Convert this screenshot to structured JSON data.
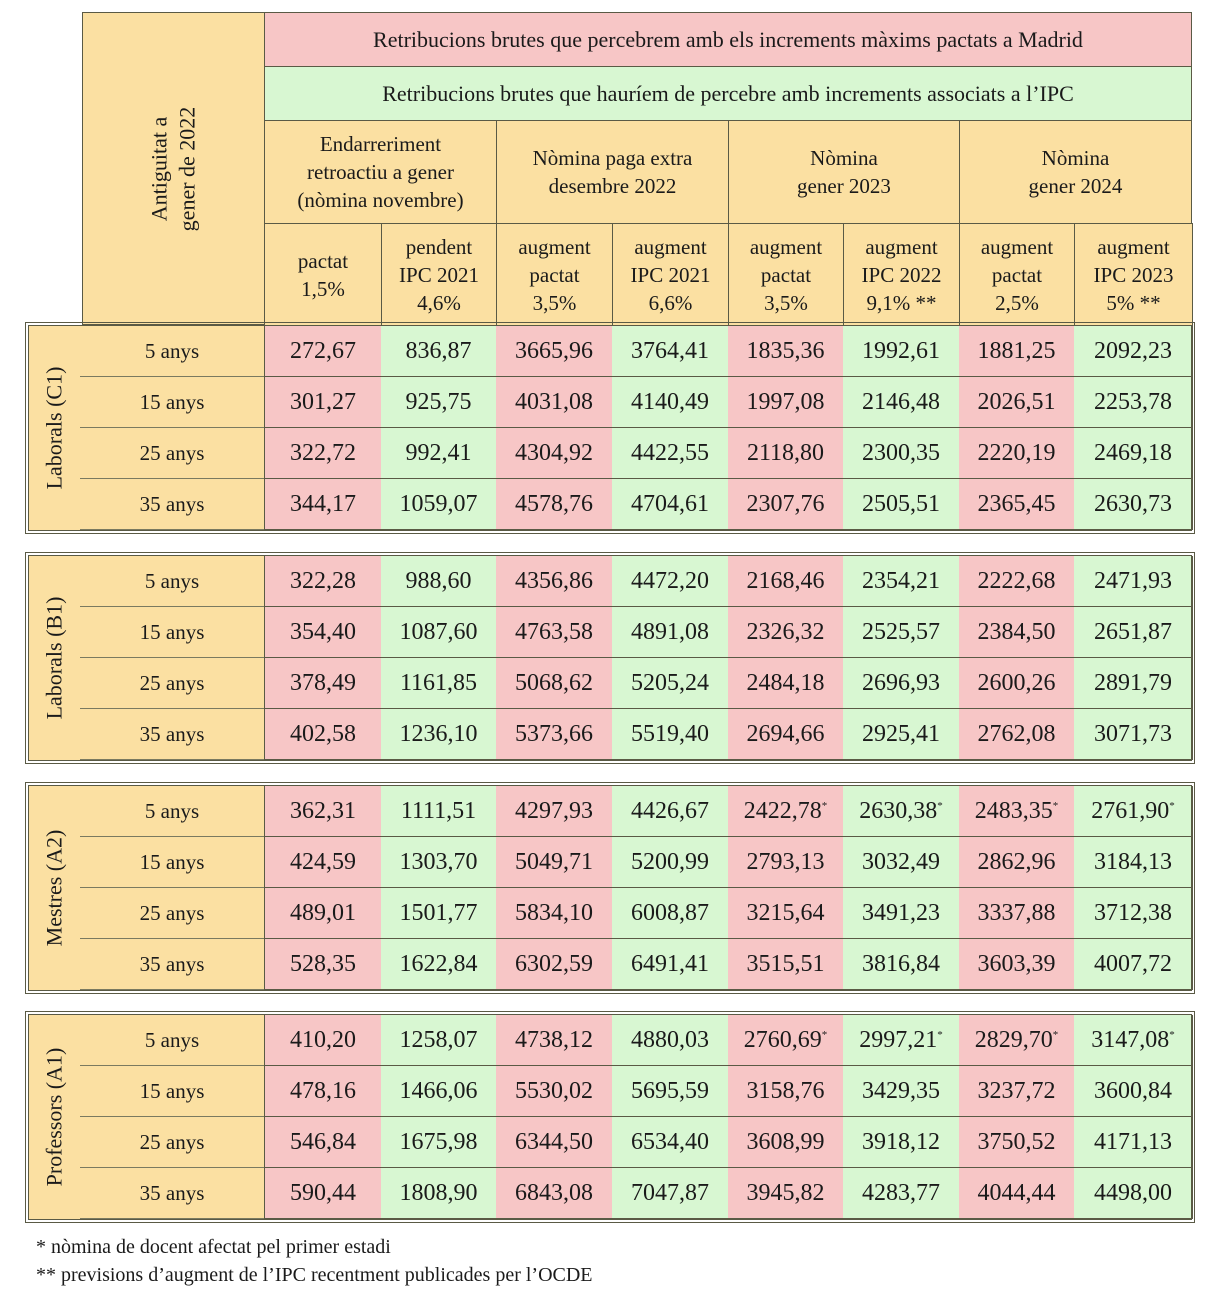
{
  "header": {
    "antiguitat_label": "Antiguitat a gener de 2022",
    "antiguitat_lines": [
      "Antiguitat a",
      "gener de 2022"
    ],
    "banner_madrid": "Retribucions brutes que percebrem amb els increments màxims pactats a Madrid",
    "banner_ipc": "Retribucions brutes que hauríem de percebre amb increments associats a l’IPC",
    "periods": [
      [
        "Endarreriment",
        "retroactiu a gener",
        "(nòmina novembre)"
      ],
      [
        "Nòmina paga extra",
        "desembre 2022"
      ],
      [
        "Nòmina",
        "gener 2023"
      ],
      [
        "Nòmina",
        "gener 2024"
      ]
    ],
    "columns": [
      [
        "pactat",
        "1,5%"
      ],
      [
        "pendent",
        "IPC 2021",
        "4,6%"
      ],
      [
        "augment",
        "pactat",
        "3,5%"
      ],
      [
        "augment",
        "IPC 2021",
        "6,6%"
      ],
      [
        "augment",
        "pactat",
        "3,5%"
      ],
      [
        "augment",
        "IPC 2022",
        "9,1% **"
      ],
      [
        "augment",
        "pactat",
        "2,5%"
      ],
      [
        "augment",
        "IPC 2023",
        "5% **"
      ]
    ]
  },
  "groups": [
    {
      "label": "Laborals (C1)",
      "rows": [
        {
          "antiguitat": "5 anys",
          "values": [
            "272,67",
            "836,87",
            "3665,96",
            "3764,41",
            "1835,36",
            "1992,61",
            "1881,25",
            "2092,23"
          ]
        },
        {
          "antiguitat": "15 anys",
          "values": [
            "301,27",
            "925,75",
            "4031,08",
            "4140,49",
            "1997,08",
            "2146,48",
            "2026,51",
            "2253,78"
          ]
        },
        {
          "antiguitat": "25 anys",
          "values": [
            "322,72",
            "992,41",
            "4304,92",
            "4422,55",
            "2118,80",
            "2300,35",
            "2220,19",
            "2469,18"
          ]
        },
        {
          "antiguitat": "35 anys",
          "values": [
            "344,17",
            "1059,07",
            "4578,76",
            "4704,61",
            "2307,76",
            "2505,51",
            "2365,45",
            "2630,73"
          ]
        }
      ]
    },
    {
      "label": "Laborals (B1)",
      "rows": [
        {
          "antiguitat": "5 anys",
          "values": [
            "322,28",
            "988,60",
            "4356,86",
            "4472,20",
            "2168,46",
            "2354,21",
            "2222,68",
            "2471,93"
          ]
        },
        {
          "antiguitat": "15 anys",
          "values": [
            "354,40",
            "1087,60",
            "4763,58",
            "4891,08",
            "2326,32",
            "2525,57",
            "2384,50",
            "2651,87"
          ]
        },
        {
          "antiguitat": "25 anys",
          "values": [
            "378,49",
            "1161,85",
            "5068,62",
            "5205,24",
            "2484,18",
            "2696,93",
            "2600,26",
            "2891,79"
          ]
        },
        {
          "antiguitat": "35 anys",
          "values": [
            "402,58",
            "1236,10",
            "5373,66",
            "5519,40",
            "2694,66",
            "2925,41",
            "2762,08",
            "3071,73"
          ]
        }
      ]
    },
    {
      "label": "Mestres (A2)",
      "rows": [
        {
          "antiguitat": "5 anys",
          "values": [
            "362,31",
            "1111,51",
            "4297,93",
            "4426,67",
            "2422,78*",
            "2630,38*",
            "2483,35*",
            "2761,90*"
          ]
        },
        {
          "antiguitat": "15 anys",
          "values": [
            "424,59",
            "1303,70",
            "5049,71",
            "5200,99",
            "2793,13",
            "3032,49",
            "2862,96",
            "3184,13"
          ]
        },
        {
          "antiguitat": "25 anys",
          "values": [
            "489,01",
            "1501,77",
            "5834,10",
            "6008,87",
            "3215,64",
            "3491,23",
            "3337,88",
            "3712,38"
          ]
        },
        {
          "antiguitat": "35 anys",
          "values": [
            "528,35",
            "1622,84",
            "6302,59",
            "6491,41",
            "3515,51",
            "3816,84",
            "3603,39",
            "4007,72"
          ]
        }
      ]
    },
    {
      "label": "Professors (A1)",
      "rows": [
        {
          "antiguitat": "5 anys",
          "values": [
            "410,20",
            "1258,07",
            "4738,12",
            "4880,03",
            "2760,69*",
            "2997,21*",
            "2829,70*",
            "3147,08*"
          ]
        },
        {
          "antiguitat": "15 anys",
          "values": [
            "478,16",
            "1466,06",
            "5530,02",
            "5695,59",
            "3158,76",
            "3429,35",
            "3237,72",
            "3600,84"
          ]
        },
        {
          "antiguitat": "25 anys",
          "values": [
            "546,84",
            "1675,98",
            "6344,50",
            "6534,40",
            "3608,99",
            "3918,12",
            "3750,52",
            "4171,13"
          ]
        },
        {
          "antiguitat": "35 anys",
          "values": [
            "590,44",
            "1808,90",
            "6843,08",
            "7047,87",
            "3945,82",
            "4283,77",
            "4044,44",
            "4498,00"
          ]
        }
      ]
    }
  ],
  "notes": [
    "* nòmina de docent afectat pel primer estadi",
    "** previsions d’augment de l’IPC recentment publicades per l’OCDE"
  ],
  "colors": {
    "pactat": "#f7c6c6",
    "ipc": "#d8f7d2",
    "label": "#fbe0a2"
  }
}
